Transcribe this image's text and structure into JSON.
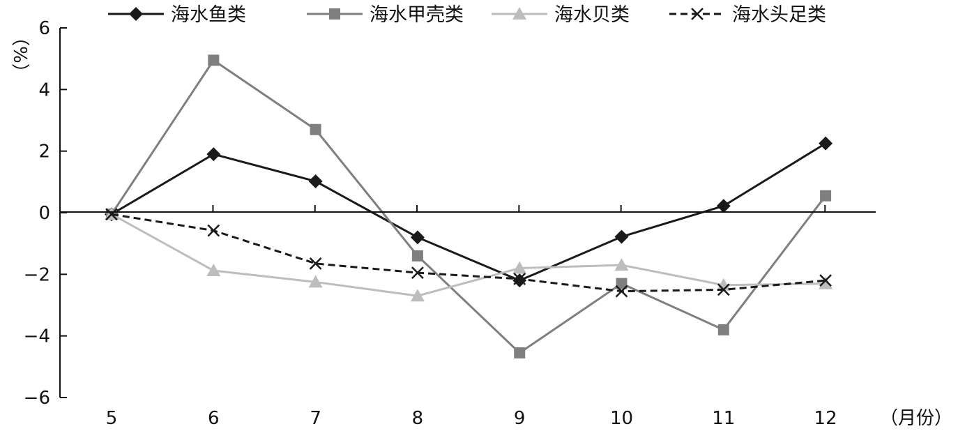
{
  "chart_data": {
    "type": "line",
    "title": "",
    "xlabel": "（月份）",
    "ylabel": "（%）",
    "ylim": [
      -6,
      6
    ],
    "y_ticks": [
      "6",
      "4",
      "2",
      "0",
      "−2",
      "−4",
      "−6"
    ],
    "y_tick_values": [
      6,
      4,
      2,
      0,
      -2,
      -4,
      -6
    ],
    "x": [
      "5",
      "6",
      "7",
      "8",
      "9",
      "10",
      "11",
      "12"
    ],
    "legend_position": "top",
    "grid": false,
    "series": [
      {
        "name": "海水鱼类",
        "color": "#1a1a1a",
        "marker": "diamond",
        "dash": "solid",
        "values": [
          -0.05,
          1.9,
          1.02,
          -0.8,
          -2.2,
          -0.78,
          0.22,
          2.25
        ]
      },
      {
        "name": "海水甲壳类",
        "color": "#7f7f7f",
        "marker": "square",
        "dash": "solid",
        "values": [
          -0.05,
          4.95,
          2.7,
          -1.4,
          -4.55,
          -2.3,
          -3.8,
          0.55
        ]
      },
      {
        "name": "海水贝类",
        "color": "#bdbdbd",
        "marker": "triangle",
        "dash": "solid",
        "values": [
          -0.05,
          -1.88,
          -2.25,
          -2.7,
          -1.8,
          -1.7,
          -2.35,
          -2.3
        ]
      },
      {
        "name": "海水头足类",
        "color": "#1a1a1a",
        "marker": "x",
        "dash": "dashed",
        "values": [
          -0.05,
          -0.58,
          -1.65,
          -1.95,
          -2.15,
          -2.55,
          -2.5,
          -2.2
        ]
      }
    ]
  }
}
